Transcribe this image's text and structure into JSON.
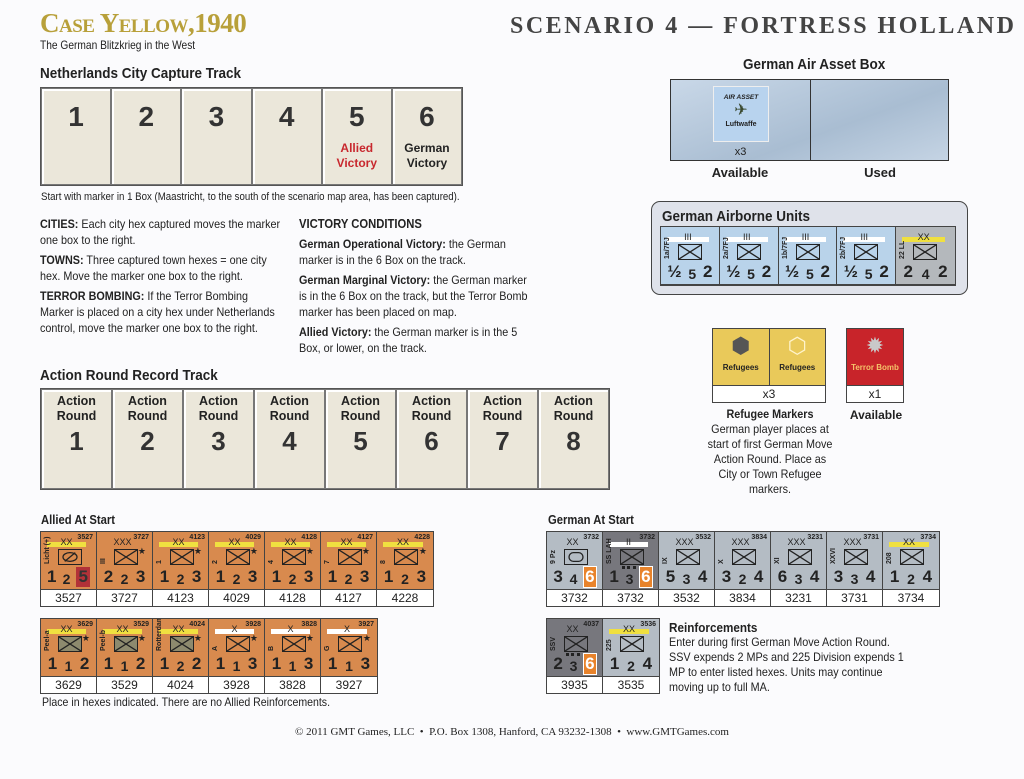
{
  "header": {
    "game_title": "Case Yellow,1940",
    "game_subtitle": "The German Blitzkrieg in the West",
    "scenario_title": "SCENARIO 4 — FORTRESS HOLLAND"
  },
  "city_track": {
    "title": "Netherlands City Capture Track",
    "boxes": [
      {
        "num": "1",
        "label": ""
      },
      {
        "num": "2",
        "label": ""
      },
      {
        "num": "3",
        "label": ""
      },
      {
        "num": "4",
        "label": ""
      },
      {
        "num": "5",
        "label": "Allied Victory",
        "color": "#c8282e"
      },
      {
        "num": "6",
        "label": "German Victory",
        "color": "#222222"
      }
    ],
    "note": "Start with marker in 1 Box (Maastricht, to the south of the scenario map area, has been captured)."
  },
  "rules": [
    {
      "head": "CITIES:",
      "text": " Each city hex captured moves the marker one box to the right."
    },
    {
      "head": "TOWNS:",
      "text": " Three captured town hexes = one city hex.  Move the marker one box to the right."
    },
    {
      "head": "TERROR BOMBING:",
      "text": " If the Terror Bombing Marker is placed on a city hex under Netherlands control, move the marker one box to the right."
    }
  ],
  "victory": {
    "title": "VICTORY CONDITIONS",
    "items": [
      {
        "head": "German Operational Victory:",
        "text": " the German marker is in the 6 Box on the track."
      },
      {
        "head": "German Marginal Victory:",
        "text": " the German marker is in the 6 Box on the track, but the Terror Bomb marker has been placed on map."
      },
      {
        "head": "Allied Victory:",
        "text": " the German marker is in the 5 Box, or lower, on the track."
      }
    ]
  },
  "action_track": {
    "title": "Action Round Record Track",
    "label": "Action Round",
    "rounds": [
      "1",
      "2",
      "3",
      "4",
      "5",
      "6",
      "7",
      "8"
    ]
  },
  "air_asset": {
    "title": "German Air Asset Box",
    "counter_top": "AIR ASSET",
    "counter_bottom": "Luftwaffe",
    "count": "x3",
    "available": "Available",
    "used": "Used"
  },
  "airborne": {
    "title": "German Airborne Units",
    "units": [
      {
        "desig": "1a/7FJ",
        "size": "III",
        "bar": "#ffffff",
        "stats": [
          "½",
          "5",
          "2"
        ],
        "bg": "#b9d3ea"
      },
      {
        "desig": "2a/7FJ",
        "size": "III",
        "bar": "#ffffff",
        "stats": [
          "½",
          "5",
          "2"
        ],
        "bg": "#b9d3ea"
      },
      {
        "desig": "1b/7FJ",
        "size": "III",
        "bar": "#ffffff",
        "stats": [
          "½",
          "5",
          "2"
        ],
        "bg": "#b9d3ea"
      },
      {
        "desig": "2b/7FJ",
        "size": "III",
        "bar": "#ffffff",
        "stats": [
          "½",
          "5",
          "2"
        ],
        "bg": "#b9d3ea"
      },
      {
        "desig": "22 LL",
        "size": "XX",
        "bar": "#f0e040",
        "stats": [
          "2",
          "4",
          "2"
        ],
        "bg": "#b4b8bc"
      }
    ]
  },
  "markers": {
    "refugee_labels": [
      "Refugees",
      "Refugees"
    ],
    "refugee_count": "x3",
    "refugee_title": "Refugee Markers",
    "refugee_text": "German player places at start of first German Move Action Round. Place as City or Town Refugee markers.",
    "terror_label": "Terror Bomb",
    "terror_count": "x1",
    "terror_status": "Available"
  },
  "allied": {
    "title": "Allied At Start",
    "note": "Place in hexes indicated. There are no Allied Reinforcements.",
    "bg": "#d88a4e",
    "row1": [
      {
        "desig": "Licht (+)",
        "size": "XX",
        "bar": "#f0e040",
        "id": "3527",
        "type": "recon",
        "star": "",
        "stats": [
          "1",
          "2",
          "5"
        ],
        "hl": 2,
        "hlc": "red",
        "hex": "3527"
      },
      {
        "desig": "III",
        "size": "XXX",
        "bar": "",
        "id": "3727",
        "type": "inf",
        "star": "★",
        "stats": [
          "2",
          "2",
          "3"
        ],
        "hex": "3727"
      },
      {
        "desig": "1",
        "size": "XX",
        "bar": "#f0e040",
        "id": "4123",
        "type": "inf",
        "star": "★",
        "stats": [
          "1",
          "2",
          "3"
        ],
        "hex": "4123"
      },
      {
        "desig": "2",
        "size": "XX",
        "bar": "#f0e040",
        "id": "4029",
        "type": "inf",
        "star": "★",
        "stats": [
          "1",
          "2",
          "3"
        ],
        "hex": "4029"
      },
      {
        "desig": "4",
        "size": "XX",
        "bar": "#f0e040",
        "id": "4128",
        "type": "inf",
        "star": "★",
        "stats": [
          "1",
          "2",
          "3"
        ],
        "hex": "4128"
      },
      {
        "desig": "7",
        "size": "XX",
        "bar": "#f0e040",
        "id": "4127",
        "type": "inf",
        "star": "★",
        "stats": [
          "1",
          "2",
          "3"
        ],
        "hex": "4127"
      },
      {
        "desig": "8",
        "size": "XX",
        "bar": "#f0e040",
        "id": "4228",
        "type": "inf",
        "star": "★",
        "stats": [
          "1",
          "2",
          "3"
        ],
        "hex": "4228"
      }
    ],
    "row2": [
      {
        "desig": "Peel-a",
        "size": "XX",
        "bar": "#f0e040",
        "id": "3629",
        "type": "fort",
        "star": "★",
        "stats": [
          "1",
          "1",
          "2"
        ],
        "hex": "3629"
      },
      {
        "desig": "Peel-b",
        "size": "XX",
        "bar": "#f0e040",
        "id": "3529",
        "type": "fort",
        "star": "★",
        "stats": [
          "1",
          "1",
          "2"
        ],
        "hex": "3529"
      },
      {
        "desig": "Rotterdam",
        "size": "XX",
        "bar": "#f0e040",
        "id": "4024",
        "type": "fort",
        "star": "★",
        "stats": [
          "1",
          "2",
          "2"
        ],
        "hex": "4024"
      },
      {
        "desig": "A",
        "size": "X",
        "bar": "#ffffff",
        "id": "3928",
        "type": "inf",
        "star": "★",
        "stats": [
          "1",
          "1",
          "3"
        ],
        "hex": "3928"
      },
      {
        "desig": "B",
        "size": "X",
        "bar": "#ffffff",
        "id": "3828",
        "type": "inf",
        "star": "★",
        "stats": [
          "1",
          "1",
          "3"
        ],
        "hex": "3828"
      },
      {
        "desig": "G",
        "size": "X",
        "bar": "#ffffff",
        "id": "3927",
        "type": "inf",
        "star": "★",
        "stats": [
          "1",
          "1",
          "3"
        ],
        "hex": "3927"
      }
    ]
  },
  "german": {
    "title": "German At Start",
    "bg": "#b4bcc4",
    "dark_bg": "#77777d",
    "row1": [
      {
        "desig": "9 Pz",
        "size": "XX",
        "bar": "",
        "id": "3732",
        "type": "armor",
        "stats": [
          "3",
          "4",
          "6"
        ],
        "hl": 2,
        "hlc": "org",
        "hex": "3732"
      },
      {
        "desig": "SS LAH",
        "size": "II",
        "bar": "#ffffff",
        "id": "3732",
        "type": "mot",
        "dark": true,
        "stats": [
          "1",
          "3",
          "6"
        ],
        "hl": 2,
        "hlc": "org",
        "hex": "3732"
      },
      {
        "desig": "IX",
        "size": "XXX",
        "bar": "",
        "id": "3532",
        "type": "inf",
        "stats": [
          "5",
          "3",
          "4"
        ],
        "hex": "3532"
      },
      {
        "desig": "X",
        "size": "XXX",
        "bar": "",
        "id": "3834",
        "type": "inf",
        "stats": [
          "3",
          "2",
          "4"
        ],
        "hex": "3834"
      },
      {
        "desig": "XI",
        "size": "XXX",
        "bar": "",
        "id": "3231",
        "type": "inf",
        "stats": [
          "6",
          "3",
          "4"
        ],
        "hex": "3231"
      },
      {
        "desig": "XXVI",
        "size": "XXX",
        "bar": "",
        "id": "3731",
        "type": "inf",
        "stats": [
          "3",
          "3",
          "4"
        ],
        "hex": "3731"
      },
      {
        "desig": "208",
        "size": "XX",
        "bar": "#f0e040",
        "id": "3734",
        "type": "inf",
        "stats": [
          "1",
          "2",
          "4"
        ],
        "hex": "3734"
      }
    ],
    "reinf": [
      {
        "desig": "SSV",
        "size": "XX",
        "bar": "",
        "id": "4037",
        "type": "mot",
        "dark": true,
        "stats": [
          "2",
          "3",
          "6"
        ],
        "hl": 2,
        "hlc": "org",
        "hex": "3935"
      },
      {
        "desig": "225",
        "size": "XX",
        "bar": "#f0e040",
        "id": "3536",
        "type": "inf",
        "stats": [
          "1",
          "2",
          "4"
        ],
        "hex": "3535"
      }
    ],
    "reinf_title": "Reinforcements",
    "reinf_text": "Enter during first German Move Action Round. SSV expends 2 MPs and 225 Division expends 1 MP to enter listed hexes. Units may continue moving up to full MA."
  },
  "footer": "© 2011 GMT Games, LLC  •  P.O. Box 1308, Hanford, CA 93232-1308  •  www.GMTGames.com"
}
